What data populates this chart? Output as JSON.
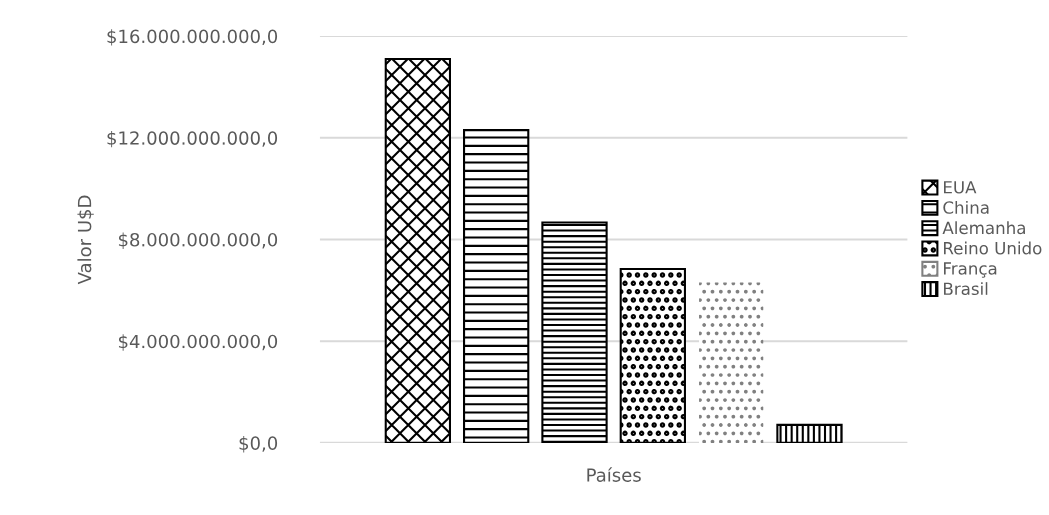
{
  "chart_data": {
    "type": "bar",
    "xlabel": "Países",
    "ylabel": "Valor U$D",
    "categories": [
      null
    ],
    "series": [
      {
        "name": "EUA",
        "color": "#000000",
        "values": [
          15100000000
        ]
      },
      {
        "name": "China",
        "color": "#000000",
        "values": [
          12300000000
        ]
      },
      {
        "name": "Alemanha",
        "color": "#000000",
        "values": [
          8670000000
        ]
      },
      {
        "name": "Reino Unido",
        "color": "#000000",
        "values": [
          6840000000
        ]
      },
      {
        "name": "França",
        "color": "#808080",
        "values": [
          6310000000
        ]
      },
      {
        "name": "Brasil",
        "color": "#000000",
        "values": [
          710000000
        ]
      }
    ],
    "ylim": [
      0,
      16000000000
    ],
    "yticks": [
      {
        "value": 0,
        "label": "$0,0"
      },
      {
        "value": 4000000000,
        "label": "$4.000.000.000,0"
      },
      {
        "value": 8000000000,
        "label": "$8.000.000.000,0"
      },
      {
        "value": 12000000000,
        "label": "$12.000.000.000,0"
      },
      {
        "value": 16000000000,
        "label": "$16.000.000.000,0"
      }
    ],
    "grid": "y",
    "legend": "right",
    "tick_labels": "y"
  }
}
